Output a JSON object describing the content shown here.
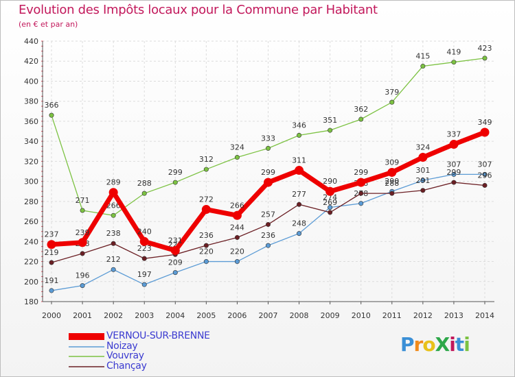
{
  "header": {
    "title": "Evolution des Impôts locaux pour la Commune par Habitant",
    "subtitle": "(en € et par an)"
  },
  "logo": {
    "text": "ProXiti",
    "letters": [
      "P",
      "r",
      "o",
      "X",
      "i",
      "t",
      "i"
    ],
    "colors": [
      "#3a8fd6",
      "#f08a1c",
      "#e8c11a",
      "#2ea84a",
      "#c2185b",
      "#3a8fd6",
      "#7cc242"
    ]
  },
  "chart_data": {
    "type": "line",
    "title": "Evolution des Impôts locaux pour la Commune par Habitant",
    "subtitle": "(en € et par an)",
    "xlabel": "",
    "ylabel": "",
    "x": [
      "2000",
      "2001",
      "2002",
      "2003",
      "2004",
      "2005",
      "2006",
      "2007",
      "2008",
      "2009",
      "2010",
      "2011",
      "2012",
      "2013",
      "2014"
    ],
    "ylim": [
      180,
      440
    ],
    "yticks": [
      180,
      200,
      220,
      240,
      260,
      280,
      300,
      320,
      340,
      360,
      380,
      400,
      420,
      440
    ],
    "grid": true,
    "legend_position": "bottom-left",
    "series": [
      {
        "name": "Vouvray",
        "color": "#7cc242",
        "values": [
          366,
          271,
          266,
          288,
          299,
          312,
          324,
          333,
          346,
          351,
          362,
          379,
          415,
          419,
          423
        ],
        "labels": [
          "366",
          "271",
          "266",
          "288",
          "299",
          "312",
          "324",
          "333",
          "346",
          "351",
          "362",
          "379",
          "415",
          "419",
          "423"
        ]
      },
      {
        "name": "Noizay",
        "color": "#5b9bd5",
        "values": [
          191,
          196,
          212,
          197,
          209,
          220,
          220,
          236,
          248,
          274,
          278,
          290,
          301,
          307,
          307
        ],
        "labels": [
          "191",
          "196",
          "212",
          "197",
          "209",
          "220",
          "220",
          "236",
          "248",
          "274",
          "278",
          "290",
          "301",
          "307",
          "307"
        ]
      },
      {
        "name": "Chançay",
        "color": "#6b1f24",
        "values": [
          219,
          228,
          238,
          223,
          227,
          236,
          244,
          257,
          277,
          269,
          288,
          288,
          291,
          299,
          296
        ],
        "labels": [
          "219",
          "228",
          "238",
          "223",
          "227",
          "236",
          "244",
          "257",
          "277",
          "269",
          "288",
          "288",
          "291",
          "299",
          "296"
        ]
      },
      {
        "name": "VERNOU-SUR-BRENNE",
        "color": "#ee0000",
        "values": [
          237,
          239,
          289,
          240,
          231,
          272,
          266,
          299,
          311,
          290,
          299,
          309,
          324,
          337,
          349
        ],
        "labels": [
          "237",
          "239",
          "289",
          "240",
          "231",
          "272",
          "266",
          "299",
          "311",
          "290",
          "299",
          "309",
          "324",
          "337",
          "349"
        ]
      }
    ]
  },
  "legend": {
    "items": [
      {
        "label": "VERNOU-SUR-BRENNE",
        "color": "#ee0000",
        "width": 10
      },
      {
        "label": "Noizay",
        "color": "#5b9bd5",
        "width": 1.5
      },
      {
        "label": "Vouvray",
        "color": "#7cc242",
        "width": 1.5
      },
      {
        "label": "Chançay",
        "color": "#6b1f24",
        "width": 1.5
      }
    ]
  }
}
